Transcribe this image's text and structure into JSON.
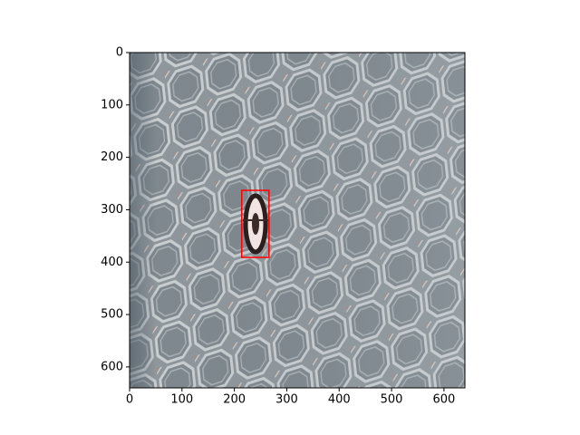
{
  "chart_data": {
    "type": "image",
    "xlim": [
      0,
      640
    ],
    "ylim": [
      640,
      0
    ],
    "xticks": [
      0,
      100,
      200,
      300,
      400,
      500,
      600
    ],
    "yticks": [
      0,
      100,
      200,
      300,
      400,
      500,
      600
    ],
    "boxes": [
      {
        "x": [
          214,
          266
        ],
        "y": [
          263,
          391
        ],
        "color": "#ff0000"
      }
    ]
  }
}
